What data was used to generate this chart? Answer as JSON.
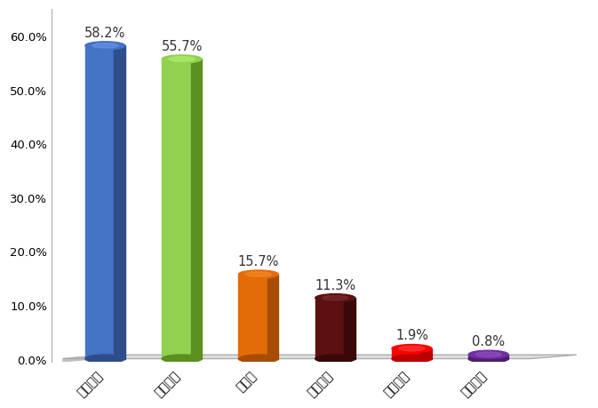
{
  "categories": [
    "大气污染",
    "噪声污染",
    "水污染",
    "固废污染",
    "生态破坏",
    "辐射污染"
  ],
  "values": [
    58.2,
    55.7,
    15.7,
    11.3,
    1.9,
    0.8
  ],
  "labels": [
    "58.2%",
    "55.7%",
    "15.7%",
    "11.3%",
    "1.9%",
    "0.8%"
  ],
  "bar_colors": [
    "#4472C4",
    "#92D050",
    "#E36C09",
    "#5C1010",
    "#FF0000",
    "#7030A0"
  ],
  "bar_light_colors": [
    "#6A96E4",
    "#B2F070",
    "#F38C29",
    "#7C3030",
    "#FF4040",
    "#9050C0"
  ],
  "bar_dark_colors": [
    "#2E4E8A",
    "#5A9020",
    "#A84D06",
    "#3A0808",
    "#BB0000",
    "#4E1E70"
  ],
  "ylim": [
    0,
    65
  ],
  "yticks": [
    0,
    10,
    20,
    30,
    40,
    50,
    60
  ],
  "ytick_labels": [
    "0.0%",
    "10.0%",
    "20.0%",
    "30.0%",
    "40.0%",
    "50.0%",
    "60.0%"
  ],
  "background_color": "#FFFFFF",
  "label_fontsize": 10.5,
  "tick_fontsize": 9.5,
  "figsize": [
    6.73,
    4.6
  ],
  "dpi": 100,
  "bar_width": 0.52,
  "floor_color": "#D8D8D8",
  "floor_depth": 0.18
}
